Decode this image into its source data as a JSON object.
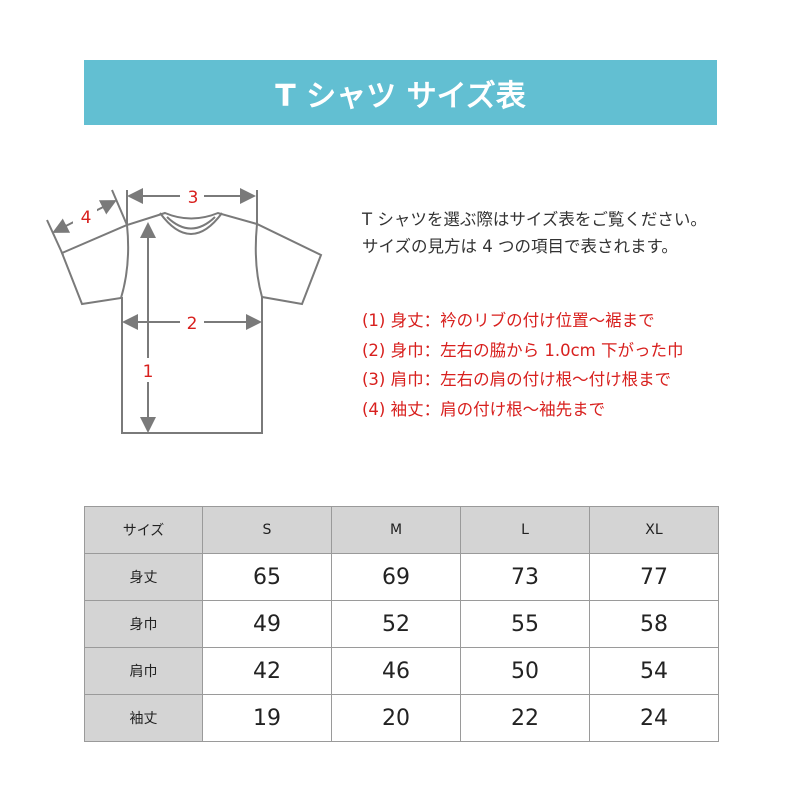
{
  "title": "T シャツ サイズ表",
  "diagram": {
    "labels": [
      "1",
      "2",
      "3",
      "4"
    ],
    "line_color": "#7a7a7a",
    "label_color": "#d8201e"
  },
  "description": [
    "T シャツを選ぶ際はサイズ表をご覧ください。",
    "サイズの見方は 4 つの項目で表されます。"
  ],
  "notes": [
    "(1) 身丈：衿のリブの付け位置〜裾まで",
    "(2) 身巾：左右の脇から 1.0cm 下がった巾",
    "(3) 肩巾：左右の肩の付け根〜付け根まで",
    "(4) 袖丈：肩の付け根〜袖先まで"
  ],
  "table": {
    "headers": [
      "サイズ",
      "S",
      "M",
      "L",
      "XL"
    ],
    "rows": [
      {
        "label": "身丈",
        "values": [
          "65",
          "69",
          "73",
          "77"
        ]
      },
      {
        "label": "身巾",
        "values": [
          "49",
          "52",
          "55",
          "58"
        ]
      },
      {
        "label": "肩巾",
        "values": [
          "42",
          "46",
          "50",
          "54"
        ]
      },
      {
        "label": "袖丈",
        "values": [
          "19",
          "20",
          "22",
          "24"
        ]
      }
    ]
  }
}
